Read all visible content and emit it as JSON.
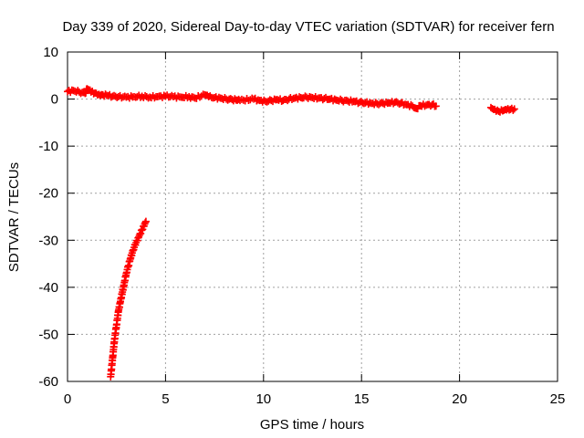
{
  "chart_data": {
    "type": "scatter",
    "title": "Day 339 of 2020, Sidereal Day-to-day VTEC variation (SDTVAR) for receiver fern",
    "xlabel": "GPS time / hours",
    "ylabel": "SDTVAR / TECUs",
    "xlim": [
      0,
      25
    ],
    "ylim": [
      -60,
      10
    ],
    "xticks": [
      0,
      5,
      10,
      15,
      20,
      25
    ],
    "yticks": [
      10,
      0,
      -10,
      -20,
      -30,
      -40,
      -50,
      -60
    ],
    "grid": true,
    "marker": "plus",
    "color": "#ff0000",
    "series": [
      {
        "x": [
          0.0,
          0.3,
          0.6,
          0.9,
          1.0,
          1.1,
          1.2,
          1.4,
          1.6,
          1.8,
          2.0,
          2.3,
          2.6,
          3.0,
          3.4,
          3.8,
          4.2,
          4.6,
          5.0,
          5.4,
          5.8,
          6.2,
          6.5,
          7.0,
          7.2,
          7.5,
          7.8,
          8.1,
          8.4,
          8.6,
          8.8,
          9.5,
          9.8,
          10.1,
          10.4,
          10.7,
          11.0,
          11.3,
          11.6,
          11.9,
          12.2,
          12.5,
          12.8,
          13.1,
          13.4,
          13.7,
          14.0,
          14.3,
          14.6,
          14.9,
          15.2,
          15.5,
          15.8,
          16.1,
          16.4,
          16.7,
          17.0,
          17.3,
          17.6,
          17.8,
          18.0,
          18.3,
          18.6,
          18.8,
          21.6,
          21.8,
          22.0,
          22.2,
          22.4,
          22.6,
          22.8
        ],
        "y": [
          1.6,
          1.8,
          1.5,
          1.2,
          2.2,
          1.9,
          1.5,
          1.3,
          1.0,
          0.9,
          0.8,
          0.6,
          0.5,
          0.4,
          0.5,
          0.6,
          0.4,
          0.5,
          0.6,
          0.5,
          0.4,
          0.5,
          0.2,
          0.9,
          0.5,
          0.3,
          0.2,
          0.0,
          -0.1,
          -0.2,
          -0.3,
          0.0,
          -0.3,
          -0.5,
          -0.3,
          -0.1,
          -0.3,
          0.0,
          0.2,
          0.3,
          0.4,
          0.3,
          0.2,
          0.1,
          0.0,
          -0.2,
          -0.3,
          -0.4,
          -0.5,
          -0.7,
          -0.8,
          -0.9,
          -1.0,
          -0.9,
          -0.8,
          -0.7,
          -0.9,
          -1.2,
          -1.5,
          -2.0,
          -1.4,
          -1.3,
          -1.2,
          -1.5,
          -1.8,
          -2.2,
          -2.6,
          -2.5,
          -2.3,
          -2.2,
          -2.1
        ]
      },
      {
        "x": [
          2.2,
          2.3,
          2.4,
          2.5,
          2.6,
          2.7,
          2.8,
          2.9,
          3.0,
          3.1,
          3.2,
          3.3,
          3.4,
          3.5,
          3.6,
          3.7,
          3.8,
          3.9,
          4.0
        ],
        "y": [
          -59,
          -55,
          -51,
          -48,
          -45,
          -43,
          -41,
          -39,
          -37,
          -35.5,
          -34,
          -32.7,
          -31.5,
          -30.5,
          -29.5,
          -28.6,
          -27.8,
          -27,
          -26
        ]
      }
    ]
  }
}
